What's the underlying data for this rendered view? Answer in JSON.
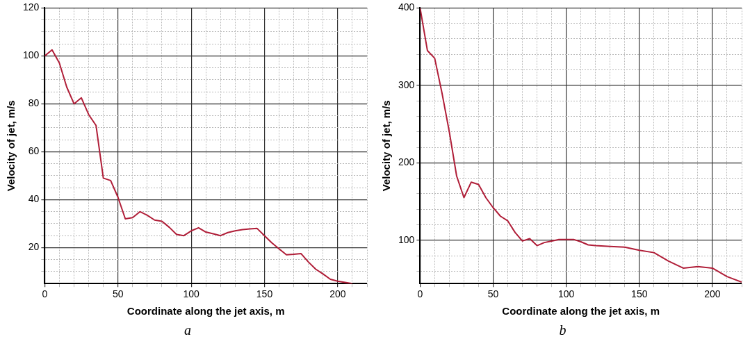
{
  "chart_data": [
    {
      "type": "line",
      "xlabel": "Coordinate along the jet axis, m",
      "ylabel": "Velocity of jet, m/s",
      "annotations": [
        "a"
      ],
      "grid": true,
      "legend": false,
      "marker": "none",
      "line_style": "solid",
      "xlim": [
        0,
        220
      ],
      "ylim": [
        5,
        120
      ],
      "xticks": [
        0,
        {
          "value": 10,
          "label": null
        },
        {
          "value": 20,
          "label": null
        },
        {
          "value": 30,
          "label": null
        },
        {
          "value": 40,
          "label": null
        },
        50,
        {
          "value": 60,
          "label": null
        },
        {
          "value": 70,
          "label": null
        },
        {
          "value": 80,
          "label": null
        },
        {
          "value": 90,
          "label": null
        },
        100,
        {
          "value": 110,
          "label": null
        },
        {
          "value": 120,
          "label": null
        },
        {
          "value": 130,
          "label": null
        },
        {
          "value": 140,
          "label": null
        },
        150,
        {
          "value": 160,
          "label": null
        },
        {
          "value": 170,
          "label": null
        },
        {
          "value": 180,
          "label": null
        },
        {
          "value": 190,
          "label": null
        },
        200,
        {
          "value": 210,
          "label": null
        },
        {
          "value": 220,
          "label": null
        }
      ],
      "yticks": [
        {
          "value": 10,
          "label": null
        },
        {
          "value": 15,
          "label": null
        },
        20,
        {
          "value": 25,
          "label": null
        },
        {
          "value": 30,
          "label": null
        },
        {
          "value": 35,
          "label": null
        },
        40,
        {
          "value": 45,
          "label": null
        },
        {
          "value": 50,
          "label": null
        },
        {
          "value": 55,
          "label": null
        },
        60,
        {
          "value": 65,
          "label": null
        },
        {
          "value": 70,
          "label": null
        },
        {
          "value": 75,
          "label": null
        },
        80,
        {
          "value": 85,
          "label": null
        },
        {
          "value": 90,
          "label": null
        },
        {
          "value": 95,
          "label": null
        },
        100,
        {
          "value": 105,
          "label": null
        },
        {
          "value": 110,
          "label": null
        },
        {
          "value": 115,
          "label": null
        },
        120
      ],
      "series": [
        {
          "color": "#b01e38",
          "x": [
            0,
            5,
            10,
            15,
            20,
            25,
            30,
            35,
            40,
            45,
            50,
            55,
            60,
            65,
            70,
            75,
            80,
            85,
            90,
            95,
            100,
            105,
            110,
            115,
            120,
            125,
            130,
            135,
            140,
            145,
            150,
            155,
            160,
            165,
            170,
            175,
            180,
            185,
            190,
            195,
            200,
            205,
            210
          ],
          "values": [
            100,
            102.5,
            97,
            87,
            80,
            82.5,
            75.5,
            71,
            49,
            48,
            41,
            32,
            32.5,
            35,
            33.5,
            31.5,
            31,
            28.5,
            25.5,
            25,
            27,
            28.3,
            26.5,
            25.8,
            25,
            26.3,
            27,
            27.5,
            27.8,
            28,
            25,
            22,
            19.5,
            17,
            17.2,
            17.5,
            14,
            11,
            9,
            6.8,
            6,
            5.5,
            5
          ]
        }
      ]
    },
    {
      "type": "line",
      "xlabel": "Coordinate along the jet axis, m",
      "ylabel": "Velocity of jet, m/s",
      "annotations": [
        "b"
      ],
      "grid": true,
      "legend": false,
      "marker": "none",
      "line_style": "solid",
      "xlim": [
        0,
        220
      ],
      "ylim": [
        44,
        400
      ],
      "xticks": [
        0,
        {
          "value": 10,
          "label": null
        },
        {
          "value": 20,
          "label": null
        },
        {
          "value": 30,
          "label": null
        },
        {
          "value": 40,
          "label": null
        },
        50,
        {
          "value": 60,
          "label": null
        },
        {
          "value": 70,
          "label": null
        },
        {
          "value": 80,
          "label": null
        },
        {
          "value": 90,
          "label": null
        },
        100,
        {
          "value": 110,
          "label": null
        },
        {
          "value": 120,
          "label": null
        },
        {
          "value": 130,
          "label": null
        },
        {
          "value": 140,
          "label": null
        },
        150,
        {
          "value": 160,
          "label": null
        },
        {
          "value": 170,
          "label": null
        },
        {
          "value": 180,
          "label": null
        },
        {
          "value": 190,
          "label": null
        },
        200,
        {
          "value": 210,
          "label": null
        },
        {
          "value": 220,
          "label": null
        }
      ],
      "yticks": [
        {
          "value": 60,
          "label": null
        },
        {
          "value": 80,
          "label": null
        },
        100,
        {
          "value": 120,
          "label": null
        },
        {
          "value": 140,
          "label": null
        },
        {
          "value": 160,
          "label": null
        },
        {
          "value": 180,
          "label": null
        },
        200,
        {
          "value": 220,
          "label": null
        },
        {
          "value": 240,
          "label": null
        },
        {
          "value": 260,
          "label": null
        },
        {
          "value": 280,
          "label": null
        },
        300,
        {
          "value": 320,
          "label": null
        },
        {
          "value": 340,
          "label": null
        },
        {
          "value": 360,
          "label": null
        },
        {
          "value": 380,
          "label": null
        },
        400
      ],
      "series": [
        {
          "color": "#b01e38",
          "x": [
            0,
            5,
            10,
            15,
            20,
            25,
            30,
            35,
            40,
            45,
            50,
            55,
            60,
            65,
            70,
            75,
            80,
            85,
            90,
            95,
            100,
            105,
            110,
            115,
            120,
            130,
            140,
            150,
            160,
            170,
            180,
            190,
            200,
            210,
            220
          ],
          "values": [
            400,
            345,
            335,
            290,
            240,
            183,
            155,
            175,
            172,
            155,
            142,
            131,
            125,
            110,
            99,
            102,
            93,
            97,
            99,
            101,
            101,
            101,
            98,
            94,
            93,
            92,
            91,
            87,
            84,
            73,
            64,
            66,
            64,
            53,
            46
          ]
        }
      ]
    }
  ]
}
